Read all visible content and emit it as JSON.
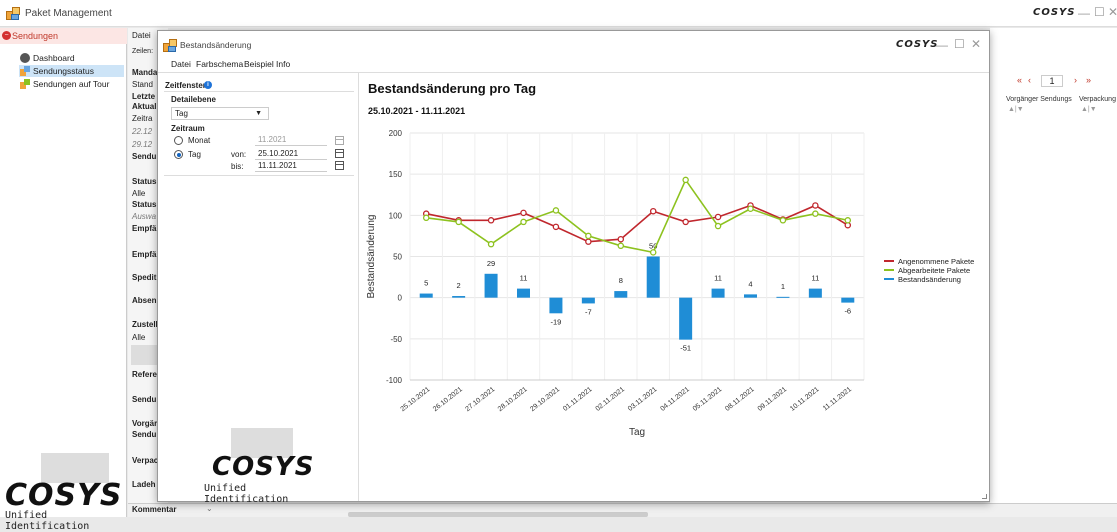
{
  "main_window": {
    "title": "Paket Management",
    "logo_text": "COSYS"
  },
  "sidebar": {
    "header": "Sendungen",
    "items": [
      {
        "label": "Dashboard"
      },
      {
        "label": "Sendungsstatus"
      },
      {
        "label": "Sendungen auf Tour"
      }
    ],
    "logo_word": "COSYS",
    "logo_sub": "Unified Identification"
  },
  "main_strip": {
    "menu_label": "Datei",
    "zeilen": "Zeilen:",
    "labels": [
      "Manda",
      "Stand",
      "Letzte",
      "Aktuali",
      "Zeitra",
      "22.12",
      "29.12",
      "Sendu",
      "Status",
      "Alle",
      "Status",
      "Auswa",
      "Empfä",
      "Empfä",
      "Spedit",
      "Absen",
      "Zustell",
      "Alle",
      "Refere",
      "Sendu",
      "Vorgär",
      "Sendu",
      "Verpac",
      "Ladeh"
    ],
    "comment_label": "Kommentar"
  },
  "right_panel": {
    "page_number": "1",
    "col_prev": "Vorgänger Sendungs",
    "col_pack": "Verpackung"
  },
  "dialog": {
    "title": "Bestandsänderung",
    "logo_text": "COSYS",
    "menu": [
      "Datei",
      "Farbschema",
      "Beispiel",
      "Info"
    ],
    "left": {
      "zeitfenster": "Zeitfenster",
      "detailebene_label": "Detailebene",
      "detailebene_value": "Tag",
      "zeitraum_label": "Zeitraum",
      "monat_label": "Monat",
      "monat_value": "11.2021",
      "tag_label": "Tag",
      "von_label": "von:",
      "von_value": "25.10.2021",
      "bis_label": "bis:",
      "bis_value": "11.11.2021",
      "logo_word": "COSYS",
      "logo_sub": "Unified Identification"
    }
  },
  "chart_data": {
    "type": "bar",
    "title": "Bestandsänderung pro Tag",
    "subtitle": "25.10.2021 - 11.11.2021",
    "xlabel": "Tag",
    "ylabel": "Bestandsänderung",
    "ylim": [
      -100,
      200
    ],
    "yticks": [
      -100,
      -50,
      0,
      50,
      100,
      150,
      200
    ],
    "grid": true,
    "legend": "right",
    "categories": [
      "25.10.2021",
      "26.10.2021",
      "27.10.2021",
      "28.10.2021",
      "29.10.2021",
      "01.11.2021",
      "02.11.2021",
      "03.11.2021",
      "04.11.2021",
      "05.11.2021",
      "08.11.2021",
      "09.11.2021",
      "10.11.2021",
      "11.11.2021"
    ],
    "series": [
      {
        "name": "Angenommene Pakete",
        "kind": "line",
        "color": "#c0272d",
        "values": [
          102,
          94,
          94,
          103,
          86,
          68,
          71,
          105,
          92,
          98,
          112,
          95,
          112,
          88
        ]
      },
      {
        "name": "Abgearbeitete Pakete",
        "kind": "line",
        "color": "#8dc21f",
        "values": [
          97,
          92,
          65,
          92,
          106,
          75,
          63,
          55,
          143,
          87,
          108,
          94,
          102,
          94
        ]
      },
      {
        "name": "Bestandsänderung",
        "kind": "bar",
        "color": "#1f8dd6",
        "values": [
          5,
          2,
          29,
          11,
          -19,
          -7,
          8,
          50,
          -51,
          11,
          4,
          1,
          11,
          -6
        ]
      }
    ]
  }
}
